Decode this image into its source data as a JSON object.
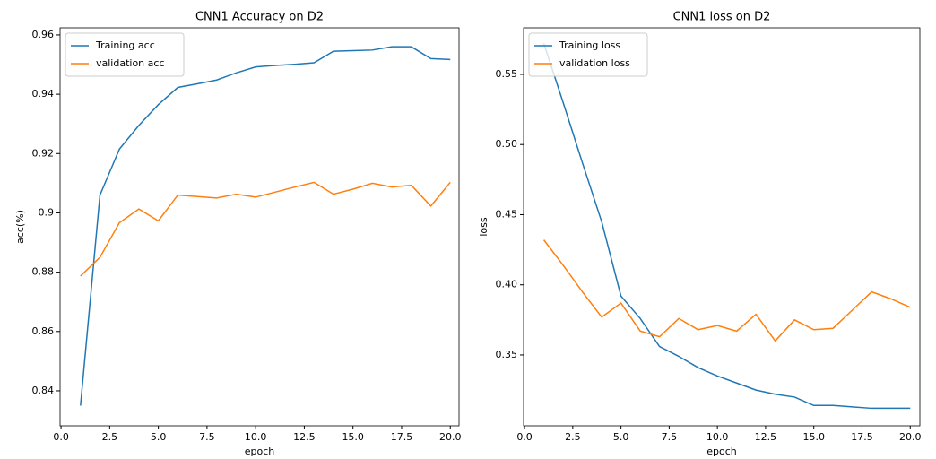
{
  "chart_data": [
    {
      "type": "line",
      "title": "CNN1 Accuracy on D2",
      "xlabel": "epoch",
      "ylabel": "acc(%)",
      "x": [
        1,
        2,
        3,
        4,
        5,
        6,
        7,
        8,
        9,
        10,
        11,
        12,
        13,
        14,
        15,
        16,
        17,
        18,
        19,
        20
      ],
      "series": [
        {
          "name": "Training acc",
          "color": "#1f77b4",
          "values": [
            0.835,
            0.906,
            0.9215,
            0.9295,
            0.9365,
            0.9423,
            0.9435,
            0.9448,
            0.9472,
            0.9492,
            0.9497,
            0.9501,
            0.9506,
            0.9545,
            0.9547,
            0.9549,
            0.956,
            0.956,
            0.952,
            0.9517
          ]
        },
        {
          "name": "validation acc",
          "color": "#ff7f0e",
          "values": [
            0.8787,
            0.885,
            0.8967,
            0.9013,
            0.8973,
            0.906,
            0.9055,
            0.905,
            0.9063,
            0.9053,
            0.907,
            0.9087,
            0.9103,
            0.9063,
            0.908,
            0.91,
            0.9087,
            0.9093,
            0.9023,
            0.9103
          ]
        }
      ],
      "xlim": [
        -0.05,
        20.45
      ],
      "ylim": [
        0.8282,
        0.9624
      ],
      "xticks": [
        {
          "value": 0,
          "label": "0.0"
        },
        {
          "value": 2.5,
          "label": "2.5"
        },
        {
          "value": 5,
          "label": "5.0"
        },
        {
          "value": 7.5,
          "label": "7.5"
        },
        {
          "value": 10,
          "label": "10.0"
        },
        {
          "value": 12.5,
          "label": "12.5"
        },
        {
          "value": 15,
          "label": "15.0"
        },
        {
          "value": 17.5,
          "label": "17.5"
        },
        {
          "value": 20,
          "label": "20.0"
        }
      ],
      "yticks": [
        0.84,
        0.86,
        0.88,
        0.9,
        0.92,
        0.94,
        0.96
      ],
      "legend": "upper-left"
    },
    {
      "type": "line",
      "title": "CNN1 loss on D2",
      "xlabel": "epoch",
      "ylabel": "loss",
      "x": [
        1,
        2,
        3,
        4,
        5,
        6,
        7,
        8,
        9,
        10,
        11,
        12,
        13,
        14,
        15,
        16,
        17,
        18,
        19,
        20
      ],
      "series": [
        {
          "name": "Training loss",
          "color": "#1f77b4",
          "values": [
            0.572,
            0.53,
            0.487,
            0.445,
            0.392,
            0.376,
            0.356,
            0.349,
            0.341,
            0.335,
            0.33,
            0.325,
            0.322,
            0.32,
            0.314,
            0.314,
            0.313,
            0.312,
            0.312,
            0.312
          ]
        },
        {
          "name": "validation loss",
          "color": "#ff7f0e",
          "values": [
            0.432,
            0.414,
            0.395,
            0.377,
            0.387,
            0.367,
            0.363,
            0.376,
            0.368,
            0.371,
            0.367,
            0.379,
            0.36,
            0.375,
            0.368,
            0.369,
            0.382,
            0.395,
            0.39,
            0.384
          ]
        }
      ],
      "xlim": [
        -0.05,
        20.5
      ],
      "ylim": [
        0.2995,
        0.5832
      ],
      "xticks": [
        {
          "value": 0,
          "label": "0.0"
        },
        {
          "value": 2.5,
          "label": "2.5"
        },
        {
          "value": 5,
          "label": "5.0"
        },
        {
          "value": 7.5,
          "label": "7.5"
        },
        {
          "value": 10,
          "label": "10.0"
        },
        {
          "value": 12.5,
          "label": "12.5"
        },
        {
          "value": 15,
          "label": "15.0"
        },
        {
          "value": 17.5,
          "label": "17.5"
        },
        {
          "value": 20,
          "label": "20.0"
        }
      ],
      "yticks": [
        0.35,
        {
          "value": 0.4,
          "label": "0.40"
        },
        0.45,
        {
          "value": 0.5,
          "label": "0.50"
        },
        0.55
      ],
      "legend": "upper-left"
    }
  ]
}
